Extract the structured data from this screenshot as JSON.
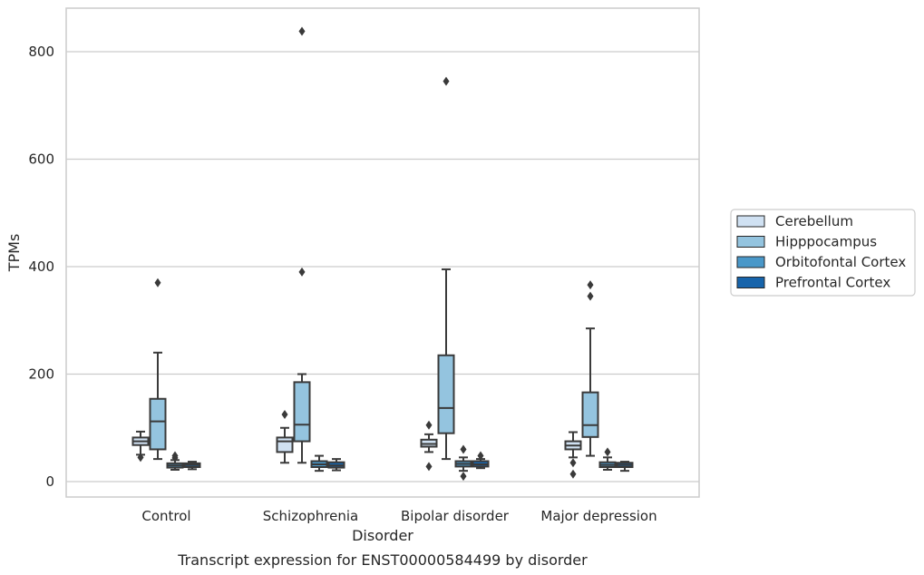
{
  "chart_data": {
    "type": "box",
    "title": "",
    "caption": "Transcript expression for ENST00000584499 by disorder",
    "xlabel": "Disorder",
    "ylabel": "TPMs",
    "ylim": [
      -28,
      880
    ],
    "yticks": [
      0,
      200,
      400,
      600,
      800
    ],
    "grid": "horizontal",
    "legend_position": "right",
    "categories": [
      "Control",
      "Schizophrenia",
      "Bipolar disorder",
      "Major depression"
    ],
    "series": [
      {
        "name": "Cerebellum",
        "color": "#d0e1f2",
        "boxes": [
          {
            "whisker_low": 50,
            "q1": 68,
            "median": 75,
            "q3": 82,
            "whisker_high": 93,
            "outliers": [
              45
            ]
          },
          {
            "whisker_low": 35,
            "q1": 55,
            "median": 75,
            "q3": 82,
            "whisker_high": 100,
            "outliers": [
              125
            ]
          },
          {
            "whisker_low": 55,
            "q1": 65,
            "median": 70,
            "q3": 78,
            "whisker_high": 88,
            "outliers": [
              105,
              28
            ]
          },
          {
            "whisker_low": 45,
            "q1": 60,
            "median": 67,
            "q3": 75,
            "whisker_high": 92,
            "outliers": [
              35,
              14
            ]
          }
        ]
      },
      {
        "name": "Hipppocampus",
        "color": "#94c4df",
        "boxes": [
          {
            "whisker_low": 42,
            "q1": 60,
            "median": 112,
            "q3": 154,
            "whisker_high": 240,
            "outliers": [
              370
            ]
          },
          {
            "whisker_low": 35,
            "q1": 75,
            "median": 106,
            "q3": 185,
            "whisker_high": 200,
            "outliers": [
              390,
              838
            ]
          },
          {
            "whisker_low": 42,
            "q1": 90,
            "median": 137,
            "q3": 235,
            "whisker_high": 395,
            "outliers": [
              745
            ]
          },
          {
            "whisker_low": 48,
            "q1": 83,
            "median": 105,
            "q3": 166,
            "whisker_high": 285,
            "outliers": [
              345,
              366
            ]
          }
        ]
      },
      {
        "name": "Orbitofontal Cortex",
        "color": "#4a98c9",
        "boxes": [
          {
            "whisker_low": 22,
            "q1": 26,
            "median": 30,
            "q3": 34,
            "whisker_high": 40,
            "outliers": [
              44,
              48
            ]
          },
          {
            "whisker_low": 20,
            "q1": 27,
            "median": 32,
            "q3": 38,
            "whisker_high": 48,
            "outliers": []
          },
          {
            "whisker_low": 20,
            "q1": 28,
            "median": 33,
            "q3": 38,
            "whisker_high": 45,
            "outliers": [
              60,
              10
            ]
          },
          {
            "whisker_low": 22,
            "q1": 27,
            "median": 31,
            "q3": 36,
            "whisker_high": 45,
            "outliers": [
              55
            ]
          }
        ]
      },
      {
        "name": "Prefrontal Cortex",
        "color": "#1764ab",
        "boxes": [
          {
            "whisker_low": 23,
            "q1": 27,
            "median": 31,
            "q3": 34,
            "whisker_high": 37,
            "outliers": []
          },
          {
            "whisker_low": 21,
            "q1": 26,
            "median": 30,
            "q3": 36,
            "whisker_high": 42,
            "outliers": []
          },
          {
            "whisker_low": 25,
            "q1": 28,
            "median": 32,
            "q3": 38,
            "whisker_high": 42,
            "outliers": [
              48
            ]
          },
          {
            "whisker_low": 20,
            "q1": 27,
            "median": 31,
            "q3": 35,
            "whisker_high": 37,
            "outliers": []
          }
        ]
      }
    ]
  }
}
